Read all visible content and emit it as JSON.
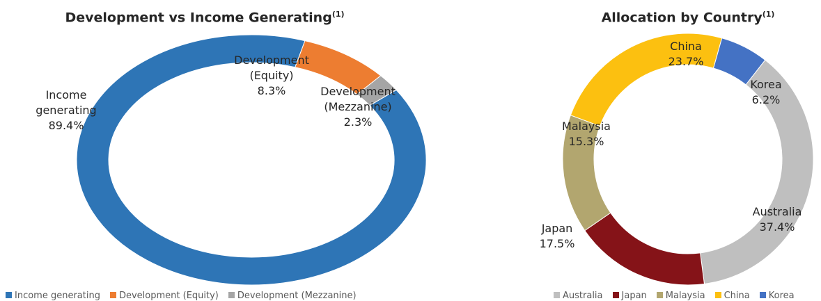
{
  "chart_data": [
    {
      "type": "donut",
      "title": "Development vs Income Generating",
      "title_note": "(1)",
      "categories": [
        "Income generating",
        "Development (Equity)",
        "Development (Mezzanine)"
      ],
      "values": [
        89.4,
        8.3,
        2.3
      ],
      "value_labels": [
        "89.4%",
        "8.3%",
        "2.3%"
      ],
      "colors": [
        "#2e75b6",
        "#ed7d31",
        "#a5a5a5"
      ],
      "legend": "bottom"
    },
    {
      "type": "donut",
      "title": "Allocation by Country",
      "title_note": "(1)",
      "categories": [
        "Australia",
        "Japan",
        "Malaysia",
        "China",
        "Korea"
      ],
      "values": [
        37.4,
        17.5,
        15.3,
        23.7,
        6.2
      ],
      "value_labels": [
        "37.4%",
        "17.5%",
        "15.3%",
        "23.7%",
        "6.2%"
      ],
      "colors": [
        "#bfbfbf",
        "#851318",
        "#b2a66f",
        "#fcc010",
        "#4472c4"
      ],
      "legend": "bottom"
    }
  ]
}
